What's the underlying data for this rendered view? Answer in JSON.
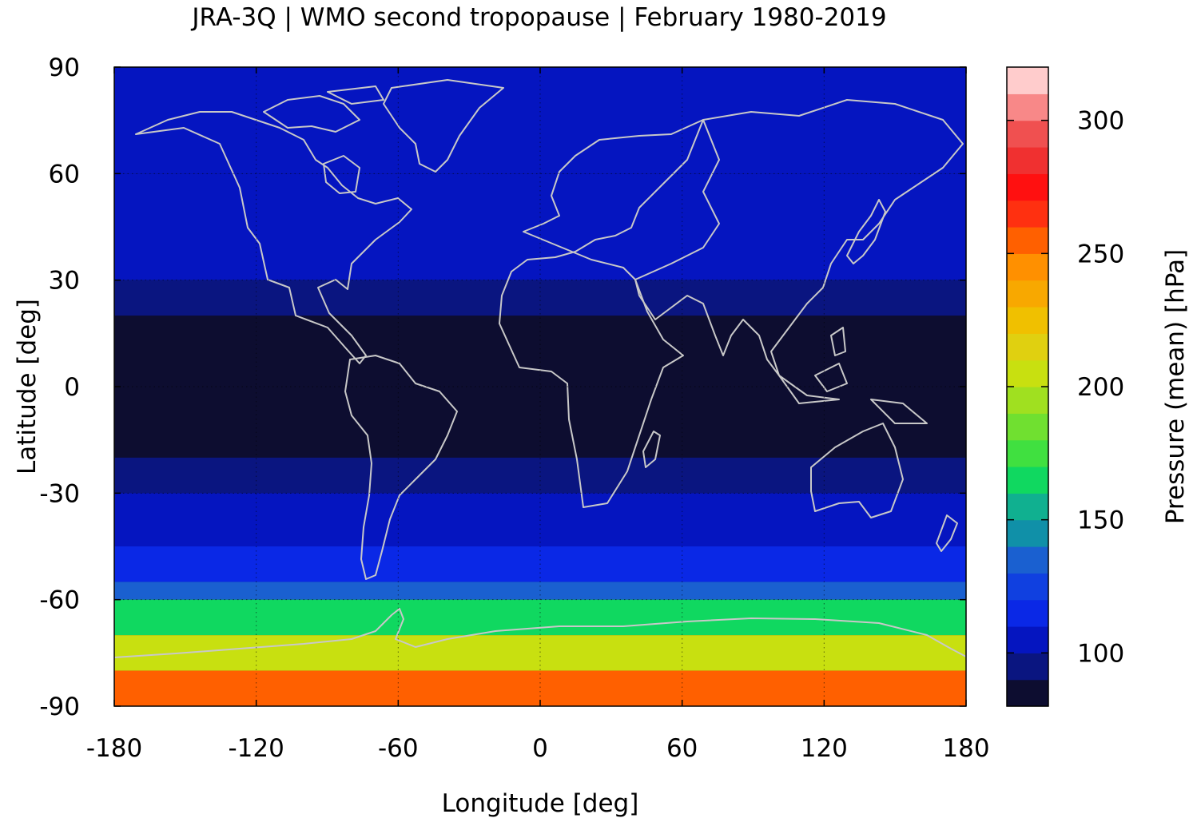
{
  "figure": {
    "title": "JRA-3Q | WMO second tropopause | February 1980-2019"
  },
  "chart_data": {
    "type": "heatmap",
    "title": "JRA-3Q | WMO second tropopause | February 1980-2019",
    "xlabel": "Longitude [deg]",
    "ylabel": "Latitude [deg]",
    "xlim": [
      -180,
      180
    ],
    "ylim": [
      -90,
      90
    ],
    "x_ticks": [
      "-180",
      "-120",
      "-60",
      "0",
      "60",
      "120",
      "180"
    ],
    "y_ticks": [
      "90",
      "60",
      "30",
      "0",
      "-30",
      "-60",
      "-90"
    ],
    "x_tick_values": [
      -180,
      -120,
      -60,
      0,
      60,
      120,
      180
    ],
    "y_tick_values": [
      90,
      60,
      30,
      0,
      -30,
      -60,
      -90
    ],
    "grid": true,
    "coastlines": true,
    "colorbar": {
      "label": "Pressure (mean) [hPa]",
      "range": [
        80,
        320
      ],
      "ticks": [
        "100",
        "150",
        "200",
        "250",
        "300"
      ],
      "tick_values": [
        100,
        150,
        200,
        250,
        300
      ],
      "colors": [
        "#0d0d30",
        "#0a1580",
        "#0515c0",
        "#0a28e6",
        "#1040e0",
        "#1a60d0",
        "#1090a8",
        "#10b090",
        "#10d860",
        "#40e040",
        "#70e030",
        "#a0e020",
        "#c8e010",
        "#e0d010",
        "#f0c000",
        "#f8a800",
        "#ff9000",
        "#ff6000",
        "#ff3010",
        "#ff1010",
        "#f03030",
        "#f05050",
        "#f88888",
        "#ffcccc"
      ]
    },
    "latitude_bands_mean_hPa": [
      {
        "lat_range": [
          60,
          90
        ],
        "value": 105
      },
      {
        "lat_range": [
          30,
          60
        ],
        "value": 100
      },
      {
        "lat_range": [
          20,
          30
        ],
        "value": 95
      },
      {
        "lat_range": [
          -20,
          20
        ],
        "value": 85
      },
      {
        "lat_range": [
          -30,
          -20
        ],
        "value": 95
      },
      {
        "lat_range": [
          -45,
          -30
        ],
        "value": 105
      },
      {
        "lat_range": [
          -55,
          -45
        ],
        "value": 115
      },
      {
        "lat_range": [
          -60,
          -55
        ],
        "value": 130
      },
      {
        "lat_range": [
          -70,
          -60
        ],
        "value": 160
      },
      {
        "lat_range": [
          -80,
          -70
        ],
        "value": 200
      },
      {
        "lat_range": [
          -90,
          -80
        ],
        "value": 250
      }
    ]
  }
}
